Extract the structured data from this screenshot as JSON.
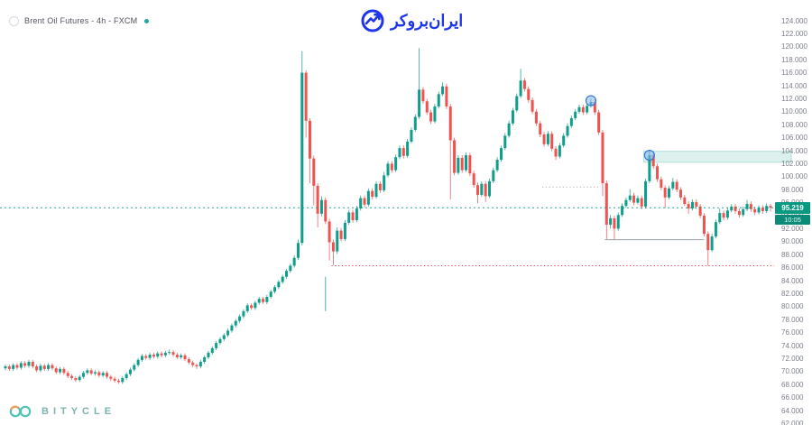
{
  "header": {
    "symbol": "Brent Oil Futures - 4h - FXCM",
    "status_dot_color": "#26a69a"
  },
  "brand": {
    "name": "ایران‌بروکر",
    "color": "#1d35eb",
    "icon": "trend-circle-icon"
  },
  "watermark": {
    "text": "BITYCLE",
    "color": "#64a8a1"
  },
  "price_axis": {
    "labels": [
      "124.000",
      "122.000",
      "120.000",
      "118.000",
      "116.000",
      "114.000",
      "112.000",
      "110.000",
      "108.000",
      "106.000",
      "104.000",
      "102.000",
      "100.000",
      "98.000",
      "96.000",
      "94.000",
      "92.000",
      "90.000",
      "88.000",
      "86.000",
      "84.000",
      "82.000",
      "80.000",
      "78.000",
      "76.000",
      "74.000",
      "72.000",
      "70.000",
      "68.000",
      "66.000",
      "64.000",
      "62.000"
    ],
    "values": [
      124,
      122,
      120,
      118,
      116,
      114,
      112,
      110,
      108,
      106,
      104,
      102,
      100,
      98,
      96,
      94,
      92,
      90,
      88,
      86,
      84,
      82,
      80,
      78,
      76,
      74,
      72,
      70,
      68,
      66,
      64,
      62
    ],
    "text_color": "#7c7f8a"
  },
  "price_badge": {
    "price": "95.219",
    "countdown": "10:05",
    "bg": "#089981"
  },
  "chart_data": {
    "type": "candlestick",
    "symbol": "Brent Oil Futures",
    "timeframe": "4h",
    "exchange": "FXCM",
    "ylim": [
      62,
      124
    ],
    "grid": false,
    "up_color": "#0f9d8c",
    "down_color": "#ef5350",
    "last_price": 95.219,
    "candles": [
      [
        70.5,
        71.1,
        70.2,
        70.8
      ],
      [
        70.8,
        71.1,
        70.1,
        70.4
      ],
      [
        70.4,
        71.3,
        70.1,
        71.0
      ],
      [
        71.0,
        71.3,
        70.3,
        70.6
      ],
      [
        70.6,
        71.6,
        70.3,
        71.3
      ],
      [
        71.3,
        71.6,
        70.6,
        70.9
      ],
      [
        70.9,
        71.8,
        70.6,
        71.5
      ],
      [
        71.5,
        71.8,
        70.5,
        70.8
      ],
      [
        70.8,
        71.1,
        69.9,
        70.2
      ],
      [
        70.2,
        71.2,
        69.9,
        70.9
      ],
      [
        70.9,
        71.2,
        70.1,
        70.4
      ],
      [
        70.4,
        71.3,
        70.1,
        71.0
      ],
      [
        71.0,
        71.3,
        70.2,
        70.5
      ],
      [
        70.5,
        70.8,
        69.6,
        69.9
      ],
      [
        69.9,
        70.7,
        69.6,
        70.4
      ],
      [
        70.4,
        70.7,
        69.5,
        69.8
      ],
      [
        69.8,
        70.1,
        69.0,
        69.3
      ],
      [
        69.3,
        69.6,
        68.7,
        69.0
      ],
      [
        69.0,
        69.3,
        68.4,
        68.7
      ],
      [
        68.7,
        69.5,
        68.4,
        69.2
      ],
      [
        69.2,
        70.1,
        68.9,
        69.8
      ],
      [
        69.8,
        70.5,
        69.5,
        70.2
      ],
      [
        70.2,
        70.5,
        69.4,
        69.7
      ],
      [
        69.7,
        70.2,
        69.4,
        69.9
      ],
      [
        69.9,
        70.2,
        69.1,
        69.4
      ],
      [
        69.4,
        70.1,
        69.1,
        69.8
      ],
      [
        69.8,
        70.1,
        68.9,
        69.2
      ],
      [
        69.2,
        69.5,
        68.6,
        68.9
      ],
      [
        68.9,
        69.2,
        68.3,
        68.6
      ],
      [
        68.6,
        68.9,
        68.1,
        68.4
      ],
      [
        68.4,
        69.3,
        68.1,
        69.0
      ],
      [
        69.0,
        69.9,
        68.7,
        69.6
      ],
      [
        69.6,
        70.6,
        69.3,
        70.3
      ],
      [
        70.3,
        71.3,
        70.0,
        71.0
      ],
      [
        71.0,
        72.1,
        70.7,
        71.8
      ],
      [
        71.8,
        72.7,
        71.5,
        72.4
      ],
      [
        72.4,
        72.7,
        71.8,
        72.1
      ],
      [
        72.1,
        72.9,
        71.8,
        72.6
      ],
      [
        72.6,
        72.9,
        72.0,
        72.3
      ],
      [
        72.3,
        73.1,
        72.0,
        72.8
      ],
      [
        72.8,
        73.1,
        72.2,
        72.5
      ],
      [
        72.5,
        73.2,
        72.2,
        72.9
      ],
      [
        72.9,
        73.4,
        72.6,
        73.0
      ],
      [
        73.0,
        73.3,
        72.3,
        72.6
      ],
      [
        72.6,
        72.9,
        71.9,
        72.2
      ],
      [
        72.2,
        72.8,
        71.9,
        72.5
      ],
      [
        72.5,
        72.8,
        71.6,
        71.9
      ],
      [
        71.9,
        72.2,
        71.1,
        71.4
      ],
      [
        71.4,
        71.7,
        70.7,
        71.0
      ],
      [
        71.0,
        71.3,
        70.4,
        70.8
      ],
      [
        70.8,
        71.8,
        70.5,
        71.5
      ],
      [
        71.5,
        72.5,
        71.2,
        72.2
      ],
      [
        72.2,
        73.2,
        71.9,
        72.9
      ],
      [
        72.9,
        73.9,
        72.6,
        73.6
      ],
      [
        73.6,
        74.7,
        73.3,
        74.4
      ],
      [
        74.4,
        75.3,
        74.1,
        75.0
      ],
      [
        75.0,
        75.9,
        74.7,
        75.6
      ],
      [
        75.6,
        76.6,
        75.3,
        76.3
      ],
      [
        76.3,
        77.4,
        76.0,
        77.1
      ],
      [
        77.1,
        78.1,
        76.8,
        77.8
      ],
      [
        77.8,
        78.8,
        77.5,
        78.5
      ],
      [
        78.5,
        79.6,
        78.2,
        79.3
      ],
      [
        79.3,
        80.5,
        79.0,
        80.2
      ],
      [
        80.2,
        80.5,
        79.5,
        79.8
      ],
      [
        79.8,
        80.9,
        79.5,
        80.6
      ],
      [
        80.6,
        81.5,
        80.3,
        81.2
      ],
      [
        81.2,
        81.5,
        80.4,
        80.7
      ],
      [
        80.7,
        81.8,
        80.4,
        81.5
      ],
      [
        81.5,
        82.6,
        81.2,
        82.3
      ],
      [
        82.3,
        83.3,
        82.0,
        83.0
      ],
      [
        83.0,
        84.1,
        82.7,
        83.8
      ],
      [
        83.8,
        84.9,
        83.5,
        84.6
      ],
      [
        84.6,
        85.8,
        84.3,
        85.5
      ],
      [
        85.5,
        86.6,
        85.2,
        86.3
      ],
      [
        86.3,
        87.9,
        86.0,
        87.5
      ],
      [
        87.5,
        90.3,
        87.2,
        89.8
      ],
      [
        89.8,
        119.3,
        89.4,
        116.0
      ],
      [
        116.0,
        116.4,
        106.0,
        108.6
      ],
      [
        108.6,
        109.0,
        99.0,
        102.8
      ],
      [
        102.8,
        103.2,
        95.6,
        98.6
      ],
      [
        98.6,
        99.0,
        92.2,
        94.3
      ],
      [
        94.3,
        97.0,
        93.9,
        96.4
      ],
      [
        96.4,
        96.8,
        92.7,
        93.1
      ],
      [
        93.1,
        93.5,
        87.1,
        89.9
      ],
      [
        89.9,
        90.3,
        86.4,
        88.5
      ],
      [
        88.5,
        92.2,
        88.1,
        91.7
      ],
      [
        91.7,
        92.1,
        90.0,
        90.4
      ],
      [
        90.4,
        93.3,
        90.1,
        92.9
      ],
      [
        92.9,
        94.9,
        92.6,
        94.5
      ],
      [
        94.5,
        94.9,
        92.9,
        93.3
      ],
      [
        93.3,
        95.5,
        93.0,
        95.1
      ],
      [
        95.1,
        97.1,
        94.8,
        96.7
      ],
      [
        96.7,
        97.1,
        95.3,
        95.7
      ],
      [
        95.7,
        98.2,
        95.4,
        97.8
      ],
      [
        97.8,
        98.2,
        96.5,
        96.9
      ],
      [
        96.9,
        99.3,
        96.6,
        98.9
      ],
      [
        98.9,
        99.3,
        97.5,
        97.9
      ],
      [
        97.9,
        100.7,
        97.6,
        100.2
      ],
      [
        100.2,
        102.4,
        99.9,
        102.0
      ],
      [
        102.0,
        102.4,
        100.6,
        101.0
      ],
      [
        101.0,
        103.4,
        100.7,
        103.0
      ],
      [
        103.0,
        104.8,
        102.7,
        104.4
      ],
      [
        104.4,
        104.8,
        102.8,
        103.2
      ],
      [
        103.2,
        105.8,
        102.9,
        105.4
      ],
      [
        105.4,
        107.6,
        105.1,
        107.2
      ],
      [
        107.2,
        109.6,
        106.9,
        109.2
      ],
      [
        109.2,
        119.8,
        108.9,
        113.4
      ],
      [
        113.4,
        113.8,
        111.2,
        111.6
      ],
      [
        111.6,
        112.0,
        109.5,
        109.9
      ],
      [
        109.9,
        110.3,
        108.1,
        108.5
      ],
      [
        108.5,
        111.2,
        108.2,
        110.8
      ],
      [
        110.8,
        113.1,
        110.5,
        112.7
      ],
      [
        112.7,
        114.5,
        112.4,
        113.9
      ],
      [
        113.9,
        114.3,
        110.4,
        110.8
      ],
      [
        110.8,
        111.2,
        96.5,
        105.6
      ],
      [
        105.6,
        106.0,
        100.2,
        100.6
      ],
      [
        100.6,
        103.3,
        100.3,
        102.9
      ],
      [
        102.9,
        103.3,
        100.6,
        101.0
      ],
      [
        101.0,
        103.7,
        100.7,
        103.3
      ],
      [
        103.3,
        103.7,
        100.1,
        100.5
      ],
      [
        100.5,
        100.9,
        98.3,
        98.7
      ],
      [
        98.7,
        99.1,
        95.9,
        97.2
      ],
      [
        97.2,
        99.3,
        96.9,
        98.9
      ],
      [
        98.9,
        99.3,
        96.1,
        97.0
      ],
      [
        97.0,
        99.7,
        96.7,
        99.3
      ],
      [
        99.3,
        101.4,
        99.0,
        101.0
      ],
      [
        101.0,
        103.0,
        100.7,
        102.6
      ],
      [
        102.6,
        104.8,
        102.3,
        104.4
      ],
      [
        104.4,
        106.7,
        104.1,
        106.3
      ],
      [
        106.3,
        108.6,
        106.0,
        108.2
      ],
      [
        108.2,
        110.6,
        107.9,
        110.2
      ],
      [
        110.2,
        112.8,
        109.9,
        112.4
      ],
      [
        112.4,
        116.6,
        112.1,
        114.8
      ],
      [
        114.8,
        115.2,
        113.1,
        113.5
      ],
      [
        113.5,
        113.9,
        111.4,
        111.8
      ],
      [
        111.8,
        112.2,
        109.6,
        110.0
      ],
      [
        110.0,
        110.4,
        107.8,
        108.2
      ],
      [
        108.2,
        108.6,
        106.1,
        106.5
      ],
      [
        106.5,
        106.9,
        104.6,
        105.0
      ],
      [
        105.0,
        107.0,
        104.7,
        106.6
      ],
      [
        106.6,
        107.0,
        103.9,
        104.3
      ],
      [
        104.3,
        104.7,
        102.6,
        103.1
      ],
      [
        103.1,
        105.2,
        102.8,
        104.8
      ],
      [
        104.8,
        106.7,
        104.5,
        106.3
      ],
      [
        106.3,
        108.2,
        106.0,
        107.8
      ],
      [
        107.8,
        109.4,
        107.5,
        109.0
      ],
      [
        109.0,
        110.4,
        108.7,
        110.0
      ],
      [
        110.0,
        111.1,
        109.7,
        110.7
      ],
      [
        110.7,
        111.1,
        109.5,
        109.9
      ],
      [
        109.9,
        111.3,
        109.6,
        110.9
      ],
      [
        110.9,
        112.0,
        110.6,
        111.5
      ],
      [
        111.5,
        111.9,
        109.5,
        109.9
      ],
      [
        109.9,
        110.3,
        106.4,
        106.8
      ],
      [
        106.8,
        107.2,
        97.0,
        99.0
      ],
      [
        99.0,
        99.4,
        90.4,
        92.6
      ],
      [
        92.6,
        94.1,
        92.0,
        93.6
      ],
      [
        93.6,
        94.0,
        90.2,
        92.0
      ],
      [
        92.0,
        94.5,
        91.7,
        94.1
      ],
      [
        94.1,
        95.9,
        93.8,
        95.5
      ],
      [
        95.5,
        96.8,
        95.2,
        96.4
      ],
      [
        96.4,
        98.1,
        96.1,
        97.1
      ],
      [
        97.1,
        97.5,
        95.6,
        96.0
      ],
      [
        96.0,
        97.1,
        95.7,
        96.7
      ],
      [
        96.7,
        97.1,
        95.0,
        95.4
      ],
      [
        95.4,
        99.7,
        95.1,
        99.3
      ],
      [
        99.3,
        104.0,
        99.0,
        103.3
      ],
      [
        103.3,
        103.7,
        101.2,
        101.6
      ],
      [
        101.6,
        102.0,
        99.2,
        99.6
      ],
      [
        99.6,
        100.0,
        97.9,
        98.3
      ],
      [
        98.3,
        98.7,
        95.2,
        96.8
      ],
      [
        96.8,
        98.6,
        96.5,
        98.2
      ],
      [
        98.2,
        99.8,
        97.9,
        99.2
      ],
      [
        99.2,
        99.6,
        97.6,
        98.0
      ],
      [
        98.0,
        98.4,
        96.4,
        96.8
      ],
      [
        96.8,
        97.2,
        95.5,
        95.8
      ],
      [
        95.8,
        96.2,
        94.3,
        95.1
      ],
      [
        95.1,
        96.5,
        94.8,
        96.1
      ],
      [
        96.1,
        96.5,
        95.0,
        95.4
      ],
      [
        95.4,
        95.8,
        93.6,
        94.0
      ],
      [
        94.0,
        94.4,
        90.8,
        91.2
      ],
      [
        91.2,
        91.6,
        86.3,
        88.7
      ],
      [
        88.7,
        91.2,
        88.4,
        90.8
      ],
      [
        90.8,
        93.4,
        90.5,
        93.0
      ],
      [
        93.0,
        95.1,
        92.7,
        94.4
      ],
      [
        94.4,
        94.8,
        93.3,
        93.7
      ],
      [
        93.7,
        95.2,
        93.4,
        94.8
      ],
      [
        94.8,
        95.8,
        94.5,
        95.4
      ],
      [
        95.4,
        95.8,
        94.3,
        94.7
      ],
      [
        94.7,
        95.1,
        93.7,
        94.1
      ],
      [
        94.1,
        95.4,
        93.8,
        95.0
      ],
      [
        95.0,
        96.4,
        94.7,
        95.8
      ],
      [
        95.8,
        96.2,
        94.6,
        95.0
      ],
      [
        95.0,
        95.4,
        94.1,
        94.5
      ],
      [
        94.5,
        95.6,
        94.2,
        95.2
      ],
      [
        95.2,
        95.6,
        94.3,
        94.7
      ],
      [
        94.7,
        95.9,
        94.4,
        95.5
      ],
      [
        95.5,
        95.8,
        94.6,
        95.219
      ]
    ]
  },
  "overlays": {
    "current_price_line": {
      "price": 95.219,
      "style": "dashed",
      "color": "#089981"
    },
    "supply_zone": {
      "price_top": 103.9,
      "price_bottom": 102.2,
      "start_candle": 164,
      "to_right_edge": true,
      "fill": "rgba(8,153,129,0.14)",
      "stroke": "rgba(8,153,129,0.30)"
    },
    "markers": [
      {
        "name": "blue-circle-marker",
        "candle": 150,
        "price": 111.7
      },
      {
        "name": "blue-circle-marker",
        "candle": 165,
        "price": 103.3
      }
    ],
    "lines": [
      {
        "type": "dotted",
        "color": "#b2b5be",
        "price": 98.4,
        "from_candle": 138,
        "to_candle": 152
      },
      {
        "type": "solid",
        "color": "#9aa0a6",
        "price": 90.3,
        "from_candle": 154,
        "to_candle": 179
      },
      {
        "type": "dotted",
        "color": "#f23645",
        "price": 86.3,
        "from_candle": 84,
        "to_end": true
      },
      {
        "type": "vertical",
        "color": "rgba(38,166,154,0.85)",
        "at_candle": 82,
        "price_from": 84.6,
        "price_to": 79.3
      }
    ]
  }
}
